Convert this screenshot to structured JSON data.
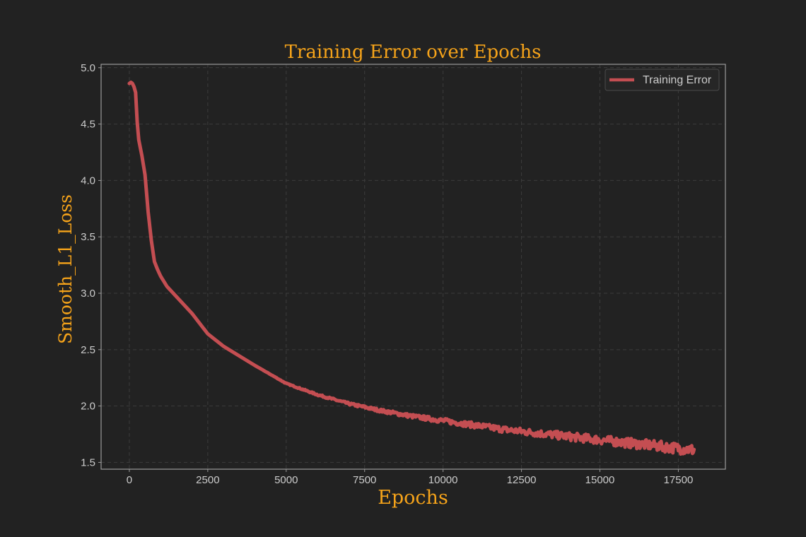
{
  "chart_data": {
    "type": "line",
    "title": "Training Error over Epochs",
    "xlabel": "Epochs",
    "ylabel": "Smooth_L1_Loss",
    "xlim": [
      -900,
      19000
    ],
    "ylim": [
      1.44,
      5.03
    ],
    "xticks": [
      0,
      2500,
      5000,
      7500,
      10000,
      12500,
      15000,
      17500
    ],
    "xtick_labels": [
      "0",
      "2500",
      "5000",
      "7500",
      "10000",
      "12500",
      "15000",
      "17500"
    ],
    "yticks": [
      1.5,
      2.0,
      2.5,
      3.0,
      3.5,
      4.0,
      4.5,
      5.0
    ],
    "ytick_labels": [
      "1.5",
      "2.0",
      "2.5",
      "3.0",
      "3.5",
      "4.0",
      "4.5",
      "5.0"
    ],
    "grid": true,
    "legend_position": "top-right",
    "series": [
      {
        "name": "Training Error",
        "color": "#c44e52",
        "noise_amplitude": 0.05,
        "points": [
          [
            0,
            4.86
          ],
          [
            50,
            4.87
          ],
          [
            100,
            4.86
          ],
          [
            150,
            4.83
          ],
          [
            200,
            4.78
          ],
          [
            250,
            4.52
          ],
          [
            300,
            4.36
          ],
          [
            400,
            4.22
          ],
          [
            500,
            4.05
          ],
          [
            600,
            3.72
          ],
          [
            700,
            3.47
          ],
          [
            800,
            3.28
          ],
          [
            900,
            3.21
          ],
          [
            1000,
            3.15
          ],
          [
            1200,
            3.06
          ],
          [
            1500,
            2.97
          ],
          [
            2000,
            2.82
          ],
          [
            2500,
            2.64
          ],
          [
            3000,
            2.53
          ],
          [
            4000,
            2.36
          ],
          [
            5000,
            2.2
          ],
          [
            6000,
            2.1
          ],
          [
            7000,
            2.02
          ],
          [
            8000,
            1.96
          ],
          [
            9000,
            1.91
          ],
          [
            10000,
            1.87
          ],
          [
            11000,
            1.83
          ],
          [
            12000,
            1.79
          ],
          [
            13000,
            1.76
          ],
          [
            14000,
            1.73
          ],
          [
            15000,
            1.7
          ],
          [
            16000,
            1.67
          ],
          [
            17000,
            1.64
          ],
          [
            18000,
            1.61
          ]
        ]
      }
    ]
  }
}
